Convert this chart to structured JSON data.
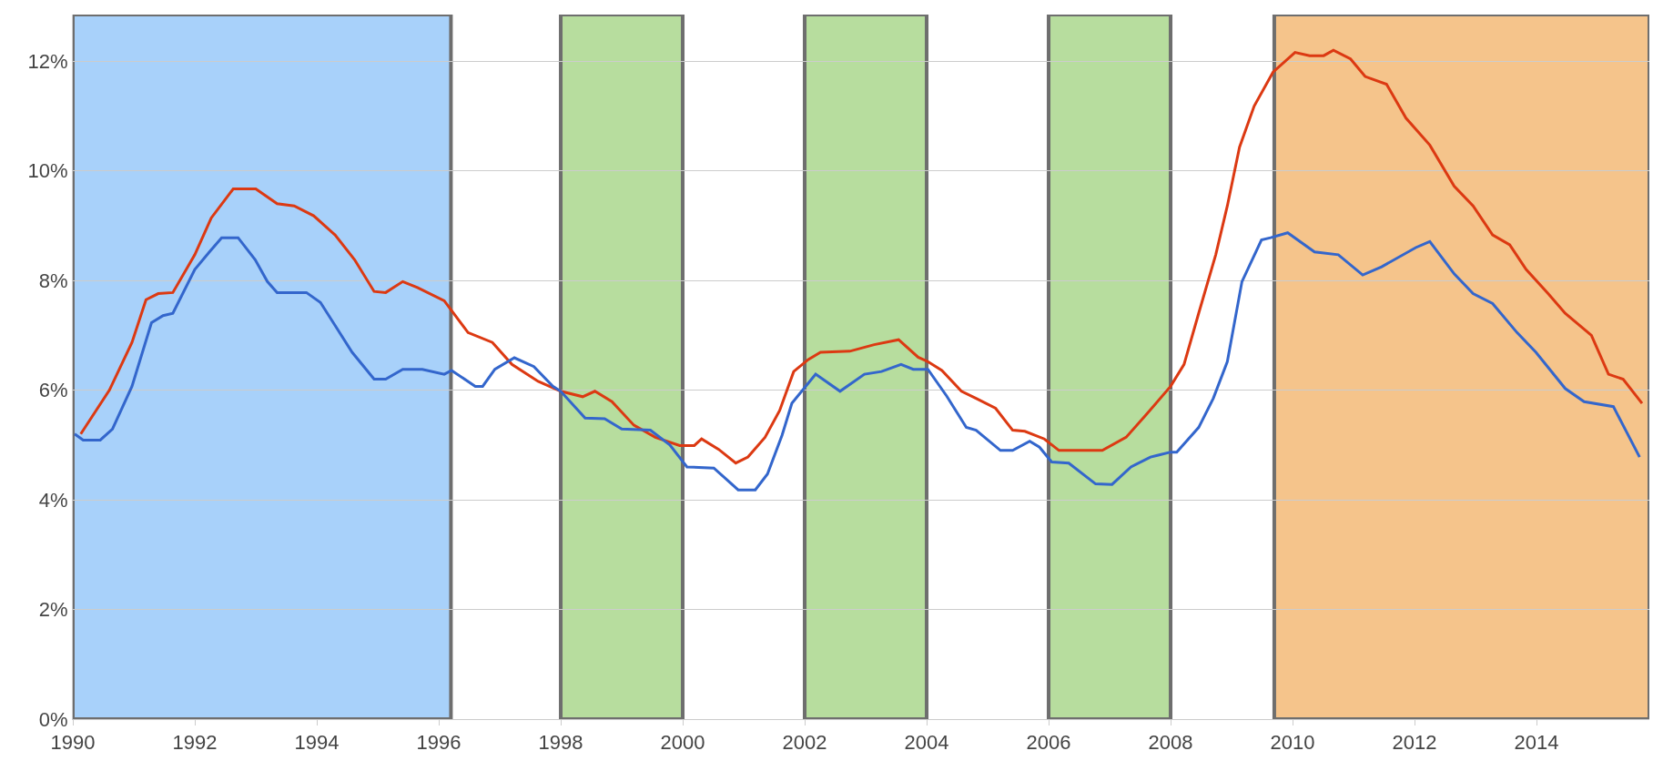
{
  "chart_data": {
    "type": "line",
    "grid": "y",
    "marker": "none",
    "line_style": "solid",
    "xlim": [
      1990,
      2015.85
    ],
    "ylim": [
      0,
      12.85
    ],
    "xticks": [
      1990,
      1992,
      1994,
      1996,
      1998,
      2000,
      2002,
      2004,
      2006,
      2008,
      2010,
      2012,
      2014
    ],
    "yticks": [
      {
        "value": 0,
        "label": "0%"
      },
      {
        "value": 2,
        "label": "2%"
      },
      {
        "value": 4,
        "label": "4%"
      },
      {
        "value": 6,
        "label": "6%"
      },
      {
        "value": 8,
        "label": "8%"
      },
      {
        "value": 10,
        "label": "10%"
      },
      {
        "value": 12,
        "label": "12%"
      }
    ],
    "bands": [
      {
        "axis": "x",
        "from": 1990,
        "to": 1996.2,
        "color": "#a8d1fa"
      },
      {
        "axis": "x",
        "from": 1998,
        "to": 2000,
        "color": "#b7dd9e"
      },
      {
        "axis": "x",
        "from": 2002,
        "to": 2004,
        "color": "#b7dd9e"
      },
      {
        "axis": "x",
        "from": 2006,
        "to": 2008,
        "color": "#b7dd9e"
      },
      {
        "axis": "x",
        "from": 2009.7,
        "to": 2015.85,
        "color": "#f5c48b"
      }
    ],
    "series": [
      {
        "color": "#dc3912",
        "x": [
          1990.13,
          1990.6,
          1990.97,
          1991.2,
          1991.4,
          1991.64,
          1992,
          1992.27,
          1992.63,
          1993,
          1993.35,
          1993.63,
          1993.95,
          1994.3,
          1994.62,
          1994.94,
          1995.13,
          1995.41,
          1995.65,
          1996.09,
          1996.48,
          1996.88,
          1997.2,
          1997.63,
          1998,
          1998.36,
          1998.56,
          1998.84,
          1999.2,
          1999.55,
          1999.95,
          2000.19,
          2000.31,
          2000.59,
          2000.87,
          2001.07,
          2001.35,
          2001.59,
          2001.82,
          2002.06,
          2002.26,
          2002.74,
          2003.14,
          2003.54,
          2003.86,
          2004.02,
          2004.25,
          2004.57,
          2004.81,
          2005.13,
          2005.41,
          2005.61,
          2005.93,
          2006.17,
          2006.88,
          2007.27,
          2007.59,
          2008,
          2008.22,
          2008.46,
          2008.74,
          2008.93,
          2009.13,
          2009.37,
          2009.68,
          2010.04,
          2010.28,
          2010.51,
          2010.67,
          2010.95,
          2011.19,
          2011.54,
          2011.86,
          2012.25,
          2012.65,
          2012.96,
          2013.28,
          2013.56,
          2013.83,
          2014.19,
          2014.47,
          2014.9,
          2015.18,
          2015.42,
          2015.73
        ],
        "values": [
          5.2,
          6.0,
          6.87,
          7.65,
          7.76,
          7.78,
          8.47,
          9.14,
          9.67,
          9.67,
          9.4,
          9.36,
          9.18,
          8.83,
          8.38,
          7.8,
          7.78,
          7.98,
          7.87,
          7.63,
          7.05,
          6.87,
          6.47,
          6.16,
          5.98,
          5.88,
          5.98,
          5.79,
          5.36,
          5.14,
          4.99,
          4.99,
          5.11,
          4.92,
          4.67,
          4.78,
          5.14,
          5.63,
          6.34,
          6.56,
          6.69,
          6.71,
          6.83,
          6.92,
          6.6,
          6.52,
          6.36,
          5.98,
          5.85,
          5.67,
          5.27,
          5.25,
          5.11,
          4.9,
          4.9,
          5.14,
          5.54,
          6.07,
          6.47,
          7.4,
          8.47,
          9.36,
          10.43,
          11.18,
          11.8,
          12.16,
          12.1,
          12.1,
          12.2,
          12.04,
          11.72,
          11.58,
          10.96,
          10.47,
          9.72,
          9.36,
          8.83,
          8.65,
          8.2,
          7.76,
          7.4,
          7.0,
          6.29,
          6.2,
          5.76
        ]
      },
      {
        "color": "#3366cc",
        "x": [
          1990.03,
          1990.17,
          1990.45,
          1990.65,
          1990.97,
          1991.29,
          1991.48,
          1991.64,
          1992,
          1992.24,
          1992.44,
          1992.71,
          1992.99,
          1993.19,
          1993.35,
          1993.83,
          1994.06,
          1994.3,
          1994.58,
          1994.94,
          1995.13,
          1995.41,
          1995.73,
          1996.09,
          1996.21,
          1996.6,
          1996.72,
          1996.92,
          1997.24,
          1997.56,
          1997.87,
          1998,
          1998.4,
          1998.72,
          1999,
          1999.47,
          1999.79,
          2000.07,
          2000.51,
          2000.71,
          2000.91,
          2001.19,
          2001.39,
          2001.63,
          2001.79,
          2002.18,
          2002.58,
          2002.98,
          2003.26,
          2003.58,
          2003.78,
          2004.02,
          2004.33,
          2004.65,
          2004.81,
          2005.21,
          2005.41,
          2005.69,
          2005.85,
          2006.05,
          2006.33,
          2006.77,
          2007.04,
          2007.35,
          2007.67,
          2008,
          2008.1,
          2008.46,
          2008.7,
          2008.93,
          2009.17,
          2009.49,
          2009.64,
          2009.92,
          2010.36,
          2010.75,
          2011.15,
          2011.46,
          2012.02,
          2012.25,
          2012.65,
          2012.96,
          2013.28,
          2013.68,
          2013.99,
          2014.47,
          2014.78,
          2015.26,
          2015.69
        ],
        "values": [
          5.2,
          5.09,
          5.09,
          5.29,
          6.07,
          7.23,
          7.36,
          7.4,
          8.2,
          8.52,
          8.78,
          8.78,
          8.38,
          7.98,
          7.78,
          7.78,
          7.6,
          7.18,
          6.69,
          6.2,
          6.2,
          6.38,
          6.38,
          6.29,
          6.36,
          6.07,
          6.07,
          6.38,
          6.59,
          6.43,
          6.07,
          5.98,
          5.49,
          5.48,
          5.29,
          5.27,
          5.0,
          4.6,
          4.58,
          4.38,
          4.18,
          4.18,
          4.47,
          5.18,
          5.76,
          6.29,
          5.98,
          6.29,
          6.34,
          6.47,
          6.38,
          6.38,
          5.89,
          5.32,
          5.27,
          4.9,
          4.9,
          5.07,
          4.96,
          4.69,
          4.67,
          4.29,
          4.28,
          4.6,
          4.78,
          4.87,
          4.87,
          5.32,
          5.85,
          6.52,
          7.98,
          8.74,
          8.78,
          8.87,
          8.52,
          8.47,
          8.1,
          8.25,
          8.6,
          8.71,
          8.12,
          7.76,
          7.58,
          7.05,
          6.69,
          6.03,
          5.79,
          5.7,
          4.78
        ]
      }
    ]
  }
}
